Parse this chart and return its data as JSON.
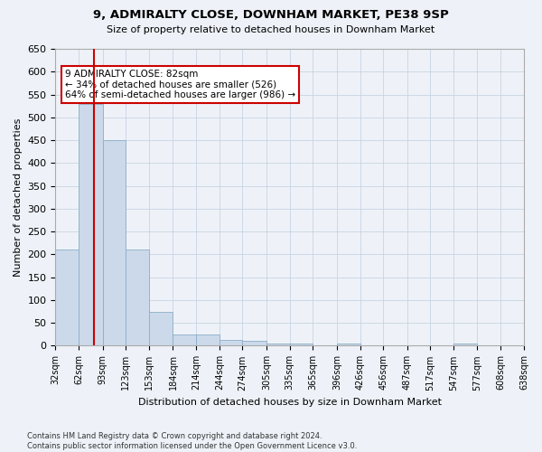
{
  "title": "9, ADMIRALTY CLOSE, DOWNHAM MARKET, PE38 9SP",
  "subtitle": "Size of property relative to detached houses in Downham Market",
  "xlabel": "Distribution of detached houses by size in Downham Market",
  "ylabel": "Number of detached properties",
  "footnote": "Contains HM Land Registry data © Crown copyright and database right 2024.\nContains public sector information licensed under the Open Government Licence v3.0.",
  "bar_color": "#ccd9ea",
  "bar_edge_color": "#8baec8",
  "grid_color": "#c8d4e3",
  "annotation_box_color": "#ffffff",
  "annotation_border_color": "#cc0000",
  "vline_color": "#cc0000",
  "property_size": 82,
  "annotation_line1": "9 ADMIRALTY CLOSE: 82sqm",
  "annotation_line2": "← 34% of detached houses are smaller (526)",
  "annotation_line3": "64% of semi-detached houses are larger (986) →",
  "bins": [
    32,
    62,
    93,
    123,
    153,
    184,
    214,
    244,
    274,
    305,
    335,
    365,
    396,
    426,
    456,
    487,
    517,
    547,
    577,
    608,
    638
  ],
  "values": [
    210,
    530,
    450,
    210,
    75,
    25,
    25,
    12,
    10,
    5,
    5,
    0,
    5,
    0,
    0,
    0,
    0,
    5,
    0,
    0,
    5
  ],
  "ylim": [
    0,
    650
  ],
  "yticks": [
    0,
    50,
    100,
    150,
    200,
    250,
    300,
    350,
    400,
    450,
    500,
    550,
    600,
    650
  ],
  "background_color": "#eef2f8",
  "figwidth": 6.0,
  "figheight": 5.0,
  "dpi": 100
}
